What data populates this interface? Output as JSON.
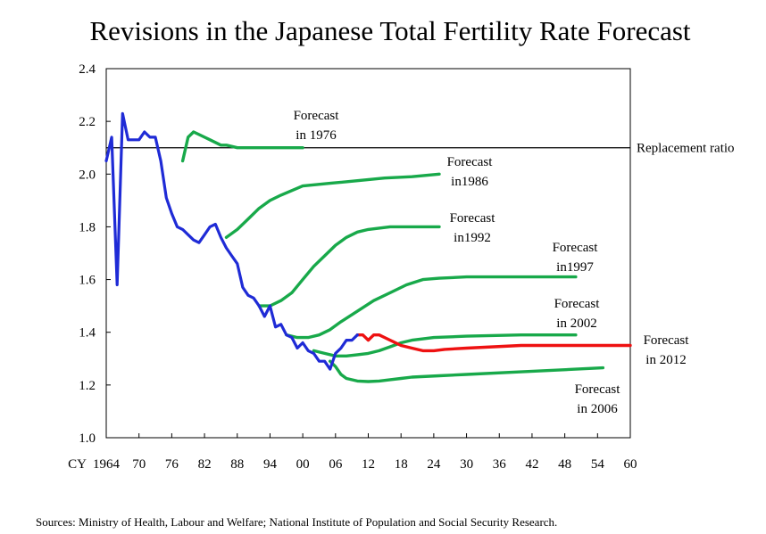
{
  "chart_data": {
    "type": "line",
    "title": "Revisions in the Japanese Total Fertility Rate Forecast",
    "xlabel": "CY",
    "ylabel": "",
    "xlim": [
      1964,
      2060
    ],
    "ylim": [
      1.0,
      2.4
    ],
    "x_ticks": [
      {
        "value": 1964,
        "label": "1964"
      },
      {
        "value": 1970,
        "label": "70"
      },
      {
        "value": 1976,
        "label": "76"
      },
      {
        "value": 1982,
        "label": "82"
      },
      {
        "value": 1988,
        "label": "88"
      },
      {
        "value": 1994,
        "label": "94"
      },
      {
        "value": 2000,
        "label": "00"
      },
      {
        "value": 2006,
        "label": "06"
      },
      {
        "value": 2012,
        "label": "12"
      },
      {
        "value": 2018,
        "label": "18"
      },
      {
        "value": 2024,
        "label": "24"
      },
      {
        "value": 2030,
        "label": "30"
      },
      {
        "value": 2036,
        "label": "36"
      },
      {
        "value": 2042,
        "label": "42"
      },
      {
        "value": 2048,
        "label": "48"
      },
      {
        "value": 2054,
        "label": "54"
      },
      {
        "value": 2060,
        "label": "60"
      }
    ],
    "y_ticks": [
      {
        "value": 1.0,
        "label": "1.0"
      },
      {
        "value": 1.2,
        "label": "1.2"
      },
      {
        "value": 1.4,
        "label": "1.4"
      },
      {
        "value": 1.6,
        "label": "1.6"
      },
      {
        "value": 1.8,
        "label": "1.8"
      },
      {
        "value": 2.0,
        "label": "2.0"
      },
      {
        "value": 2.2,
        "label": "2.2"
      },
      {
        "value": 2.4,
        "label": "2.4"
      }
    ],
    "reference_line": {
      "value": 2.1,
      "label": "Replacement ratio"
    },
    "series": [
      {
        "key": "actual",
        "color": "#1f2bd6",
        "x": [
          1964,
          1965,
          1966,
          1967,
          1968,
          1969,
          1970,
          1971,
          1972,
          1973,
          1974,
          1975,
          1976,
          1977,
          1978,
          1979,
          1980,
          1981,
          1982,
          1983,
          1984,
          1985,
          1986,
          1987,
          1988,
          1989,
          1990,
          1991,
          1992,
          1993,
          1994,
          1995,
          1996,
          1997,
          1998,
          1999,
          2000,
          2001,
          2002,
          2003,
          2004,
          2005,
          2006,
          2007,
          2008,
          2009,
          2010
        ],
        "y": [
          2.05,
          2.14,
          1.58,
          2.23,
          2.13,
          2.13,
          2.13,
          2.16,
          2.14,
          2.14,
          2.05,
          1.91,
          1.85,
          1.8,
          1.79,
          1.77,
          1.75,
          1.74,
          1.77,
          1.8,
          1.81,
          1.76,
          1.72,
          1.69,
          1.66,
          1.57,
          1.54,
          1.53,
          1.5,
          1.46,
          1.5,
          1.42,
          1.43,
          1.39,
          1.38,
          1.34,
          1.36,
          1.33,
          1.32,
          1.29,
          1.29,
          1.26,
          1.32,
          1.34,
          1.37,
          1.37,
          1.39
        ]
      },
      {
        "key": "f1976",
        "color": "#18a94a",
        "x": [
          1978,
          1979,
          1980,
          1981,
          1982,
          1983,
          1984,
          1985,
          1986,
          1988,
          1992,
          1996,
          2000
        ],
        "y": [
          2.05,
          2.14,
          2.16,
          2.15,
          2.14,
          2.13,
          2.12,
          2.11,
          2.11,
          2.1,
          2.1,
          2.1,
          2.1
        ]
      },
      {
        "key": "f1986",
        "color": "#18a94a",
        "x": [
          1986,
          1988,
          1990,
          1992,
          1994,
          1996,
          2000,
          2005,
          2010,
          2015,
          2020,
          2025
        ],
        "y": [
          1.76,
          1.79,
          1.83,
          1.87,
          1.9,
          1.92,
          1.955,
          1.965,
          1.975,
          1.985,
          1.99,
          2.0
        ]
      },
      {
        "key": "f1992",
        "color": "#18a94a",
        "x": [
          1992,
          1994,
          1996,
          1998,
          2000,
          2002,
          2004,
          2006,
          2008,
          2010,
          2012,
          2014,
          2016,
          2018,
          2020,
          2025
        ],
        "y": [
          1.5,
          1.5,
          1.52,
          1.55,
          1.6,
          1.65,
          1.69,
          1.73,
          1.76,
          1.78,
          1.79,
          1.795,
          1.8,
          1.8,
          1.8,
          1.8
        ]
      },
      {
        "key": "f1997",
        "color": "#18a94a",
        "x": [
          1997,
          1999,
          2001,
          2003,
          2005,
          2007,
          2010,
          2013,
          2016,
          2019,
          2022,
          2025,
          2030,
          2040,
          2050
        ],
        "y": [
          1.39,
          1.38,
          1.38,
          1.39,
          1.41,
          1.44,
          1.48,
          1.52,
          1.55,
          1.58,
          1.6,
          1.605,
          1.61,
          1.61,
          1.61
        ]
      },
      {
        "key": "f2002",
        "color": "#18a94a",
        "x": [
          2002,
          2004,
          2006,
          2008,
          2010,
          2012,
          2014,
          2016,
          2018,
          2020,
          2024,
          2030,
          2040,
          2050
        ],
        "y": [
          1.33,
          1.32,
          1.31,
          1.31,
          1.315,
          1.32,
          1.33,
          1.345,
          1.36,
          1.37,
          1.38,
          1.385,
          1.39,
          1.39
        ]
      },
      {
        "key": "f2006",
        "color": "#18a94a",
        "x": [
          2005,
          2006,
          2007,
          2008,
          2010,
          2012,
          2014,
          2016,
          2018,
          2020,
          2025,
          2030,
          2040,
          2050,
          2055
        ],
        "y": [
          1.29,
          1.27,
          1.24,
          1.225,
          1.215,
          1.213,
          1.215,
          1.22,
          1.225,
          1.23,
          1.235,
          1.24,
          1.25,
          1.26,
          1.265
        ]
      },
      {
        "key": "f2012",
        "color": "#ee1111",
        "x": [
          2010,
          2011,
          2012,
          2013,
          2014,
          2015,
          2016,
          2018,
          2020,
          2022,
          2024,
          2026,
          2030,
          2040,
          2050,
          2060
        ],
        "y": [
          1.39,
          1.39,
          1.37,
          1.39,
          1.39,
          1.38,
          1.37,
          1.35,
          1.34,
          1.33,
          1.33,
          1.335,
          1.34,
          1.35,
          1.35,
          1.35
        ]
      }
    ],
    "annotations": [
      {
        "key": "f1976",
        "lines": [
          "Forecast",
          "in 1976"
        ]
      },
      {
        "key": "f1986",
        "lines": [
          "Forecast",
          "in1986"
        ]
      },
      {
        "key": "f1992",
        "lines": [
          "Forecast",
          "in1992"
        ]
      },
      {
        "key": "f1997",
        "lines": [
          "Forecast",
          "in1997"
        ]
      },
      {
        "key": "f2002",
        "lines": [
          "Forecast",
          "in 2002"
        ]
      },
      {
        "key": "f2012",
        "lines": [
          "Forecast",
          "in 2012"
        ]
      },
      {
        "key": "f2006",
        "lines": [
          "Forecast",
          "in 2006"
        ]
      }
    ],
    "source": "Sources: Ministry of Health, Labour and Welfare; National Institute of Population and Social Security Research."
  }
}
